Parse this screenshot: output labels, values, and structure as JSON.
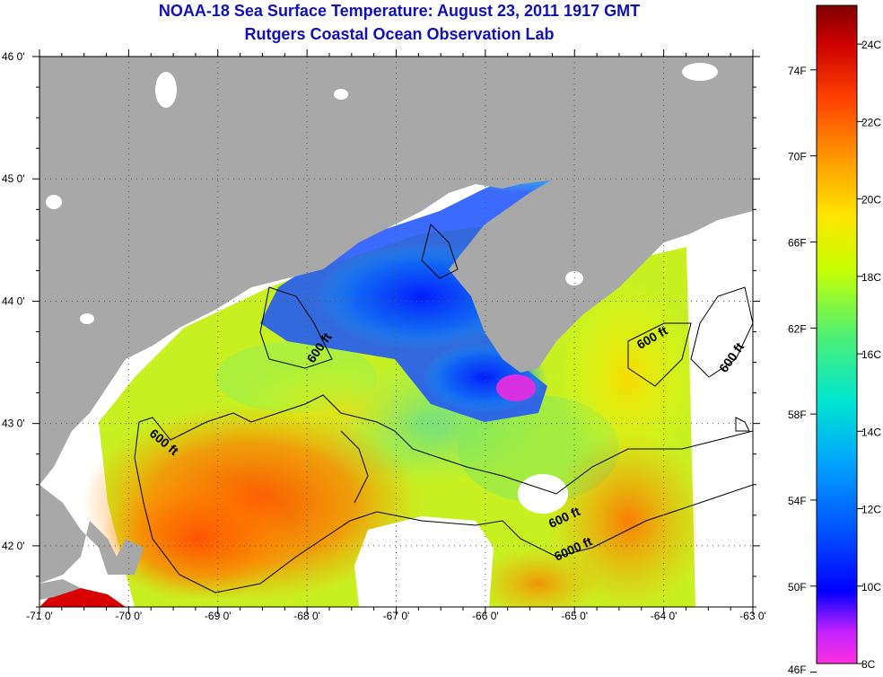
{
  "title": {
    "line1": "NOAA-18 Sea Surface Temperature:  August 23, 2011 1917 GMT",
    "line2": "Rutgers Coastal Ocean Observation Lab"
  },
  "axes": {
    "lat_ticks": [
      {
        "label": "46 0'",
        "value": 46
      },
      {
        "label": "45 0'",
        "value": 45
      },
      {
        "label": "44 0'",
        "value": 44
      },
      {
        "label": "43 0'",
        "value": 43
      },
      {
        "label": "42 0'",
        "value": 42
      }
    ],
    "lon_ticks": [
      {
        "label": "-71 0'",
        "value": -71
      },
      {
        "label": "-70 0'",
        "value": -70
      },
      {
        "label": "-69 0'",
        "value": -69
      },
      {
        "label": "-68 0'",
        "value": -68
      },
      {
        "label": "-67 0'",
        "value": -67
      },
      {
        "label": "-66 0'",
        "value": -66
      },
      {
        "label": "-65 0'",
        "value": -65
      },
      {
        "label": "-64 0'",
        "value": -64
      },
      {
        "label": "-63 0'",
        "value": -63
      }
    ],
    "lat_range": [
      41.5,
      46
    ],
    "lon_range": [
      -71,
      -63
    ],
    "grid": true
  },
  "colorbar": {
    "range_c": [
      8,
      25
    ],
    "fahrenheit_labels": [
      "74F",
      "70F",
      "66F",
      "62F",
      "58F",
      "54F",
      "50F",
      "46F"
    ],
    "celsius_labels": [
      "24C",
      "22C",
      "20C",
      "18C",
      "16C",
      "14C",
      "12C",
      "10C",
      "8C"
    ],
    "colors": [
      "#ff30e0",
      "#8800ff",
      "#0000ff",
      "#0066ff",
      "#00c8ff",
      "#00e6b4",
      "#78f050",
      "#d4ff00",
      "#ffe000",
      "#ff9000",
      "#ff3000",
      "#c00000",
      "#780000"
    ]
  },
  "contours": {
    "labels": [
      "600 ft",
      "600 ft",
      "600 ft",
      "600 ft",
      "600 ft",
      "6000 ft"
    ]
  },
  "legend_colors": {
    "land": "#a8a8a8",
    "no_data": "#ffffff",
    "contour": "#000000"
  }
}
